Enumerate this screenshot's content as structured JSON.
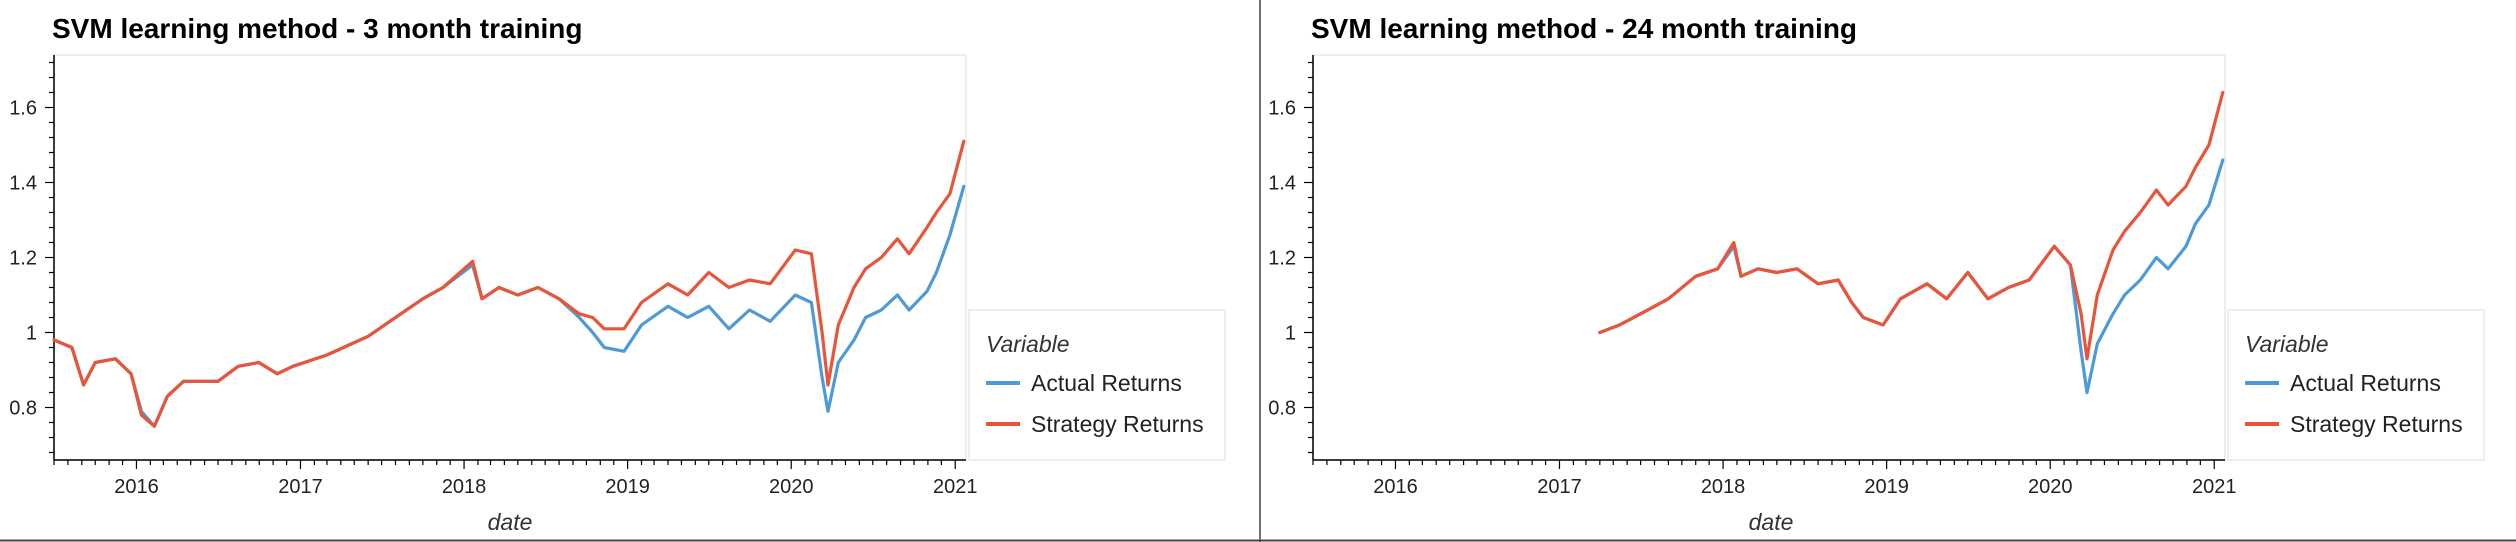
{
  "colors": {
    "actual": "#4e9ad6",
    "strategy": "#e8553a"
  },
  "chart_data": [
    {
      "type": "line",
      "title": "SVM learning method - 3 month training",
      "xlabel": "date",
      "ylabel": "",
      "xlim": [
        "2015-07-01",
        "2021-01-25"
      ],
      "ylim": [
        0.66,
        1.74
      ],
      "x_ticks": [
        "2016",
        "2017",
        "2018",
        "2019",
        "2020",
        "2021"
      ],
      "y_ticks": [
        "0.8",
        "1",
        "1.2",
        "1.4",
        "1.6"
      ],
      "legend": {
        "title": "Variable",
        "placement": "right"
      },
      "series": [
        {
          "name": "Actual Returns",
          "points": [
            [
              "2015-07-01",
              0.98
            ],
            [
              "2015-08-10",
              0.96
            ],
            [
              "2015-09-05",
              0.86
            ],
            [
              "2015-10-01",
              0.92
            ],
            [
              "2015-11-15",
              0.93
            ],
            [
              "2015-12-20",
              0.89
            ],
            [
              "2016-01-12",
              0.79
            ],
            [
              "2016-02-10",
              0.75
            ],
            [
              "2016-03-10",
              0.83
            ],
            [
              "2016-04-15",
              0.87
            ],
            [
              "2016-05-20",
              0.87
            ],
            [
              "2016-07-01",
              0.87
            ],
            [
              "2016-08-15",
              0.91
            ],
            [
              "2016-09-30",
              0.92
            ],
            [
              "2016-11-10",
              0.89
            ],
            [
              "2016-12-15",
              0.91
            ],
            [
              "2017-03-01",
              0.94
            ],
            [
              "2017-06-01",
              0.99
            ],
            [
              "2017-08-01",
              1.04
            ],
            [
              "2017-10-01",
              1.09
            ],
            [
              "2017-11-15",
              1.12
            ],
            [
              "2018-01-20",
              1.18
            ],
            [
              "2018-02-10",
              1.09
            ],
            [
              "2018-03-20",
              1.12
            ],
            [
              "2018-05-01",
              1.1
            ],
            [
              "2018-06-15",
              1.12
            ],
            [
              "2018-08-01",
              1.09
            ],
            [
              "2018-09-15",
              1.04
            ],
            [
              "2018-10-15",
              1.0
            ],
            [
              "2018-11-10",
              0.96
            ],
            [
              "2018-12-24",
              0.95
            ],
            [
              "2019-02-01",
              1.02
            ],
            [
              "2019-04-01",
              1.07
            ],
            [
              "2019-05-15",
              1.04
            ],
            [
              "2019-07-01",
              1.07
            ],
            [
              "2019-08-15",
              1.01
            ],
            [
              "2019-09-30",
              1.06
            ],
            [
              "2019-11-15",
              1.03
            ],
            [
              "2020-01-10",
              1.1
            ],
            [
              "2020-02-15",
              1.08
            ],
            [
              "2020-03-10",
              0.88
            ],
            [
              "2020-03-23",
              0.79
            ],
            [
              "2020-04-15",
              0.92
            ],
            [
              "2020-05-20",
              0.98
            ],
            [
              "2020-06-15",
              1.04
            ],
            [
              "2020-07-20",
              1.06
            ],
            [
              "2020-08-25",
              1.1
            ],
            [
              "2020-09-20",
              1.06
            ],
            [
              "2020-10-30",
              1.11
            ],
            [
              "2020-11-20",
              1.16
            ],
            [
              "2020-12-20",
              1.26
            ],
            [
              "2021-01-20",
              1.39
            ]
          ]
        },
        {
          "name": "Strategy Returns",
          "points": [
            [
              "2015-07-01",
              0.98
            ],
            [
              "2015-08-10",
              0.96
            ],
            [
              "2015-09-05",
              0.86
            ],
            [
              "2015-10-01",
              0.92
            ],
            [
              "2015-11-15",
              0.93
            ],
            [
              "2015-12-20",
              0.89
            ],
            [
              "2016-01-12",
              0.78
            ],
            [
              "2016-02-10",
              0.75
            ],
            [
              "2016-03-10",
              0.83
            ],
            [
              "2016-04-15",
              0.87
            ],
            [
              "2016-05-20",
              0.87
            ],
            [
              "2016-07-01",
              0.87
            ],
            [
              "2016-08-15",
              0.91
            ],
            [
              "2016-09-30",
              0.92
            ],
            [
              "2016-11-10",
              0.89
            ],
            [
              "2016-12-15",
              0.91
            ],
            [
              "2017-03-01",
              0.94
            ],
            [
              "2017-06-01",
              0.99
            ],
            [
              "2017-08-01",
              1.04
            ],
            [
              "2017-10-01",
              1.09
            ],
            [
              "2017-11-15",
              1.12
            ],
            [
              "2018-01-20",
              1.19
            ],
            [
              "2018-02-10",
              1.09
            ],
            [
              "2018-03-20",
              1.12
            ],
            [
              "2018-05-01",
              1.1
            ],
            [
              "2018-06-15",
              1.12
            ],
            [
              "2018-08-01",
              1.09
            ],
            [
              "2018-09-15",
              1.05
            ],
            [
              "2018-10-15",
              1.04
            ],
            [
              "2018-11-10",
              1.01
            ],
            [
              "2018-12-24",
              1.01
            ],
            [
              "2019-02-01",
              1.08
            ],
            [
              "2019-04-01",
              1.13
            ],
            [
              "2019-05-15",
              1.1
            ],
            [
              "2019-07-01",
              1.16
            ],
            [
              "2019-08-15",
              1.12
            ],
            [
              "2019-09-30",
              1.14
            ],
            [
              "2019-11-15",
              1.13
            ],
            [
              "2020-01-10",
              1.22
            ],
            [
              "2020-02-15",
              1.21
            ],
            [
              "2020-03-10",
              1.0
            ],
            [
              "2020-03-23",
              0.86
            ],
            [
              "2020-04-15",
              1.02
            ],
            [
              "2020-05-20",
              1.12
            ],
            [
              "2020-06-15",
              1.17
            ],
            [
              "2020-07-20",
              1.2
            ],
            [
              "2020-08-25",
              1.25
            ],
            [
              "2020-09-20",
              1.21
            ],
            [
              "2020-10-30",
              1.28
            ],
            [
              "2020-11-20",
              1.32
            ],
            [
              "2020-12-20",
              1.37
            ],
            [
              "2021-01-20",
              1.51
            ]
          ]
        }
      ]
    },
    {
      "type": "line",
      "title": "SVM learning method - 24 month training",
      "xlabel": "date",
      "ylabel": "",
      "xlim": [
        "2015-07-01",
        "2021-01-25"
      ],
      "ylim": [
        0.66,
        1.74
      ],
      "x_ticks": [
        "2016",
        "2017",
        "2018",
        "2019",
        "2020",
        "2021"
      ],
      "y_ticks": [
        "0.8",
        "1",
        "1.2",
        "1.4",
        "1.6"
      ],
      "legend": {
        "title": "Variable",
        "placement": "right"
      },
      "series": [
        {
          "name": "Actual Returns",
          "points": [
            [
              "2017-04-01",
              1.0
            ],
            [
              "2017-05-15",
              1.02
            ],
            [
              "2017-07-01",
              1.05
            ],
            [
              "2017-09-01",
              1.09
            ],
            [
              "2017-11-01",
              1.15
            ],
            [
              "2017-12-20",
              1.17
            ],
            [
              "2018-01-25",
              1.23
            ],
            [
              "2018-02-10",
              1.15
            ],
            [
              "2018-03-20",
              1.17
            ],
            [
              "2018-05-01",
              1.16
            ],
            [
              "2018-06-15",
              1.17
            ],
            [
              "2018-08-01",
              1.13
            ],
            [
              "2018-09-15",
              1.14
            ],
            [
              "2018-10-15",
              1.08
            ],
            [
              "2018-11-10",
              1.04
            ],
            [
              "2018-12-24",
              1.02
            ],
            [
              "2019-02-01",
              1.09
            ],
            [
              "2019-04-01",
              1.13
            ],
            [
              "2019-05-15",
              1.09
            ],
            [
              "2019-07-01",
              1.16
            ],
            [
              "2019-08-15",
              1.09
            ],
            [
              "2019-09-30",
              1.12
            ],
            [
              "2019-11-15",
              1.14
            ],
            [
              "2020-01-10",
              1.23
            ],
            [
              "2020-02-15",
              1.18
            ],
            [
              "2020-03-10",
              0.95
            ],
            [
              "2020-03-23",
              0.84
            ],
            [
              "2020-04-15",
              0.97
            ],
            [
              "2020-05-20",
              1.05
            ],
            [
              "2020-06-15",
              1.1
            ],
            [
              "2020-07-20",
              1.14
            ],
            [
              "2020-08-25",
              1.2
            ],
            [
              "2020-09-20",
              1.17
            ],
            [
              "2020-10-30",
              1.23
            ],
            [
              "2020-11-20",
              1.29
            ],
            [
              "2020-12-20",
              1.34
            ],
            [
              "2021-01-20",
              1.46
            ]
          ]
        },
        {
          "name": "Strategy Returns",
          "points": [
            [
              "2017-04-01",
              1.0
            ],
            [
              "2017-05-15",
              1.02
            ],
            [
              "2017-07-01",
              1.05
            ],
            [
              "2017-09-01",
              1.09
            ],
            [
              "2017-11-01",
              1.15
            ],
            [
              "2017-12-20",
              1.17
            ],
            [
              "2018-01-25",
              1.24
            ],
            [
              "2018-02-10",
              1.15
            ],
            [
              "2018-03-20",
              1.17
            ],
            [
              "2018-05-01",
              1.16
            ],
            [
              "2018-06-15",
              1.17
            ],
            [
              "2018-08-01",
              1.13
            ],
            [
              "2018-09-15",
              1.14
            ],
            [
              "2018-10-15",
              1.08
            ],
            [
              "2018-11-10",
              1.04
            ],
            [
              "2018-12-24",
              1.02
            ],
            [
              "2019-02-01",
              1.09
            ],
            [
              "2019-04-01",
              1.13
            ],
            [
              "2019-05-15",
              1.09
            ],
            [
              "2019-07-01",
              1.16
            ],
            [
              "2019-08-15",
              1.09
            ],
            [
              "2019-09-30",
              1.12
            ],
            [
              "2019-11-15",
              1.14
            ],
            [
              "2020-01-10",
              1.23
            ],
            [
              "2020-02-15",
              1.18
            ],
            [
              "2020-03-10",
              1.05
            ],
            [
              "2020-03-23",
              0.93
            ],
            [
              "2020-04-15",
              1.1
            ],
            [
              "2020-05-20",
              1.22
            ],
            [
              "2020-06-15",
              1.27
            ],
            [
              "2020-07-20",
              1.32
            ],
            [
              "2020-08-25",
              1.38
            ],
            [
              "2020-09-20",
              1.34
            ],
            [
              "2020-10-30",
              1.39
            ],
            [
              "2020-11-20",
              1.44
            ],
            [
              "2020-12-20",
              1.5
            ],
            [
              "2021-01-20",
              1.64
            ]
          ]
        }
      ]
    }
  ]
}
